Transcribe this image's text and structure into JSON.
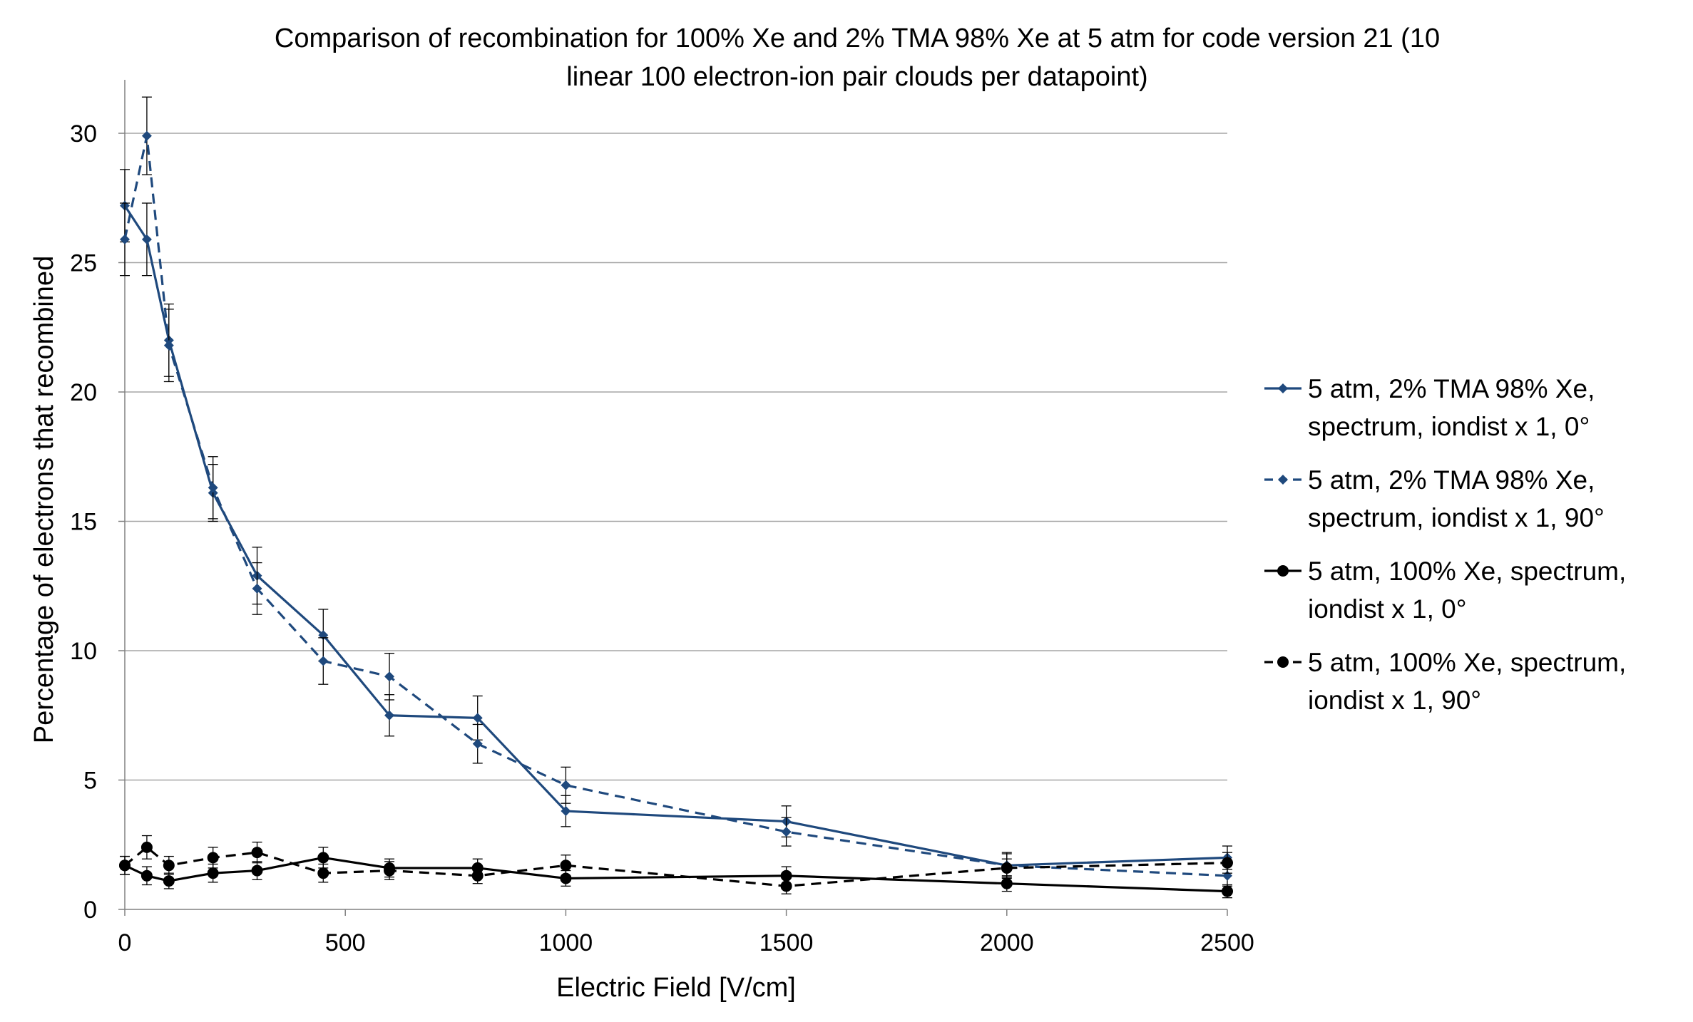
{
  "chart_data": {
    "type": "line",
    "title_lines": [
      "Comparison of recombination for 100% Xe and 2% TMA 98% Xe at 5 atm for code version 21 (10",
      "linear 100 electron-ion pair clouds per datapoint)"
    ],
    "xlabel": "Electric Field [V/cm]",
    "ylabel": "Percentage of electrons that recombined",
    "xlim": [
      0,
      2500
    ],
    "ylim": [
      0,
      30
    ],
    "x_ticks": [
      0,
      500,
      1000,
      1500,
      2000,
      2500
    ],
    "y_ticks": [
      0,
      5,
      10,
      15,
      20,
      25,
      30
    ],
    "grid": "horizontal",
    "legend_position": "right",
    "series": [
      {
        "name_lines": [
          "5 atm, 2% TMA 98% Xe,",
          "spectrum, iondist x 1, 0°"
        ],
        "color": "#1f497d",
        "dash": "solid",
        "marker": "diamond",
        "x": [
          0,
          50,
          100,
          200,
          300,
          450,
          600,
          800,
          1000,
          1500,
          2000,
          2500
        ],
        "y": [
          27.2,
          25.9,
          22.0,
          16.1,
          12.9,
          10.6,
          7.5,
          7.4,
          3.8,
          3.4,
          1.7,
          2.0
        ],
        "err": [
          1.4,
          1.4,
          1.4,
          1.1,
          1.1,
          1.0,
          0.8,
          0.85,
          0.6,
          0.6,
          0.5,
          0.45
        ]
      },
      {
        "name_lines": [
          "5 atm, 2% TMA 98% Xe,",
          "spectrum, iondist x 1, 90°"
        ],
        "color": "#1f497d",
        "dash": "dashed",
        "marker": "diamond",
        "x": [
          0,
          50,
          100,
          200,
          300,
          450,
          600,
          800,
          1000,
          1500,
          2000,
          2500
        ],
        "y": [
          25.9,
          29.9,
          21.8,
          16.3,
          12.4,
          9.6,
          9.0,
          6.4,
          4.8,
          3.0,
          1.7,
          1.3
        ],
        "err": [
          1.4,
          1.5,
          1.4,
          1.2,
          1.0,
          0.9,
          0.9,
          0.75,
          0.7,
          0.55,
          0.45,
          0.4
        ]
      },
      {
        "name_lines": [
          "5 atm, 100% Xe, spectrum,",
          "iondist x 1, 0°"
        ],
        "color": "#000000",
        "dash": "solid",
        "marker": "circle",
        "x": [
          0,
          50,
          100,
          200,
          300,
          450,
          600,
          800,
          1000,
          1500,
          2000,
          2500
        ],
        "y": [
          1.7,
          1.3,
          1.1,
          1.4,
          1.5,
          2.0,
          1.6,
          1.6,
          1.2,
          1.3,
          1.0,
          0.7
        ],
        "err": [
          0.35,
          0.35,
          0.3,
          0.35,
          0.35,
          0.4,
          0.35,
          0.35,
          0.3,
          0.35,
          0.3,
          0.25
        ]
      },
      {
        "name_lines": [
          "5 atm, 100% Xe, spectrum,",
          "iondist x 1, 90°"
        ],
        "color": "#000000",
        "dash": "dashed",
        "marker": "circle",
        "x": [
          0,
          50,
          100,
          200,
          300,
          450,
          600,
          800,
          1000,
          1500,
          2000,
          2500
        ],
        "y": [
          1.7,
          2.4,
          1.7,
          2.0,
          2.2,
          1.4,
          1.5,
          1.3,
          1.7,
          0.9,
          1.6,
          1.8
        ],
        "err": [
          0.35,
          0.45,
          0.35,
          0.4,
          0.4,
          0.35,
          0.35,
          0.3,
          0.4,
          0.3,
          0.35,
          0.4
        ]
      }
    ]
  }
}
